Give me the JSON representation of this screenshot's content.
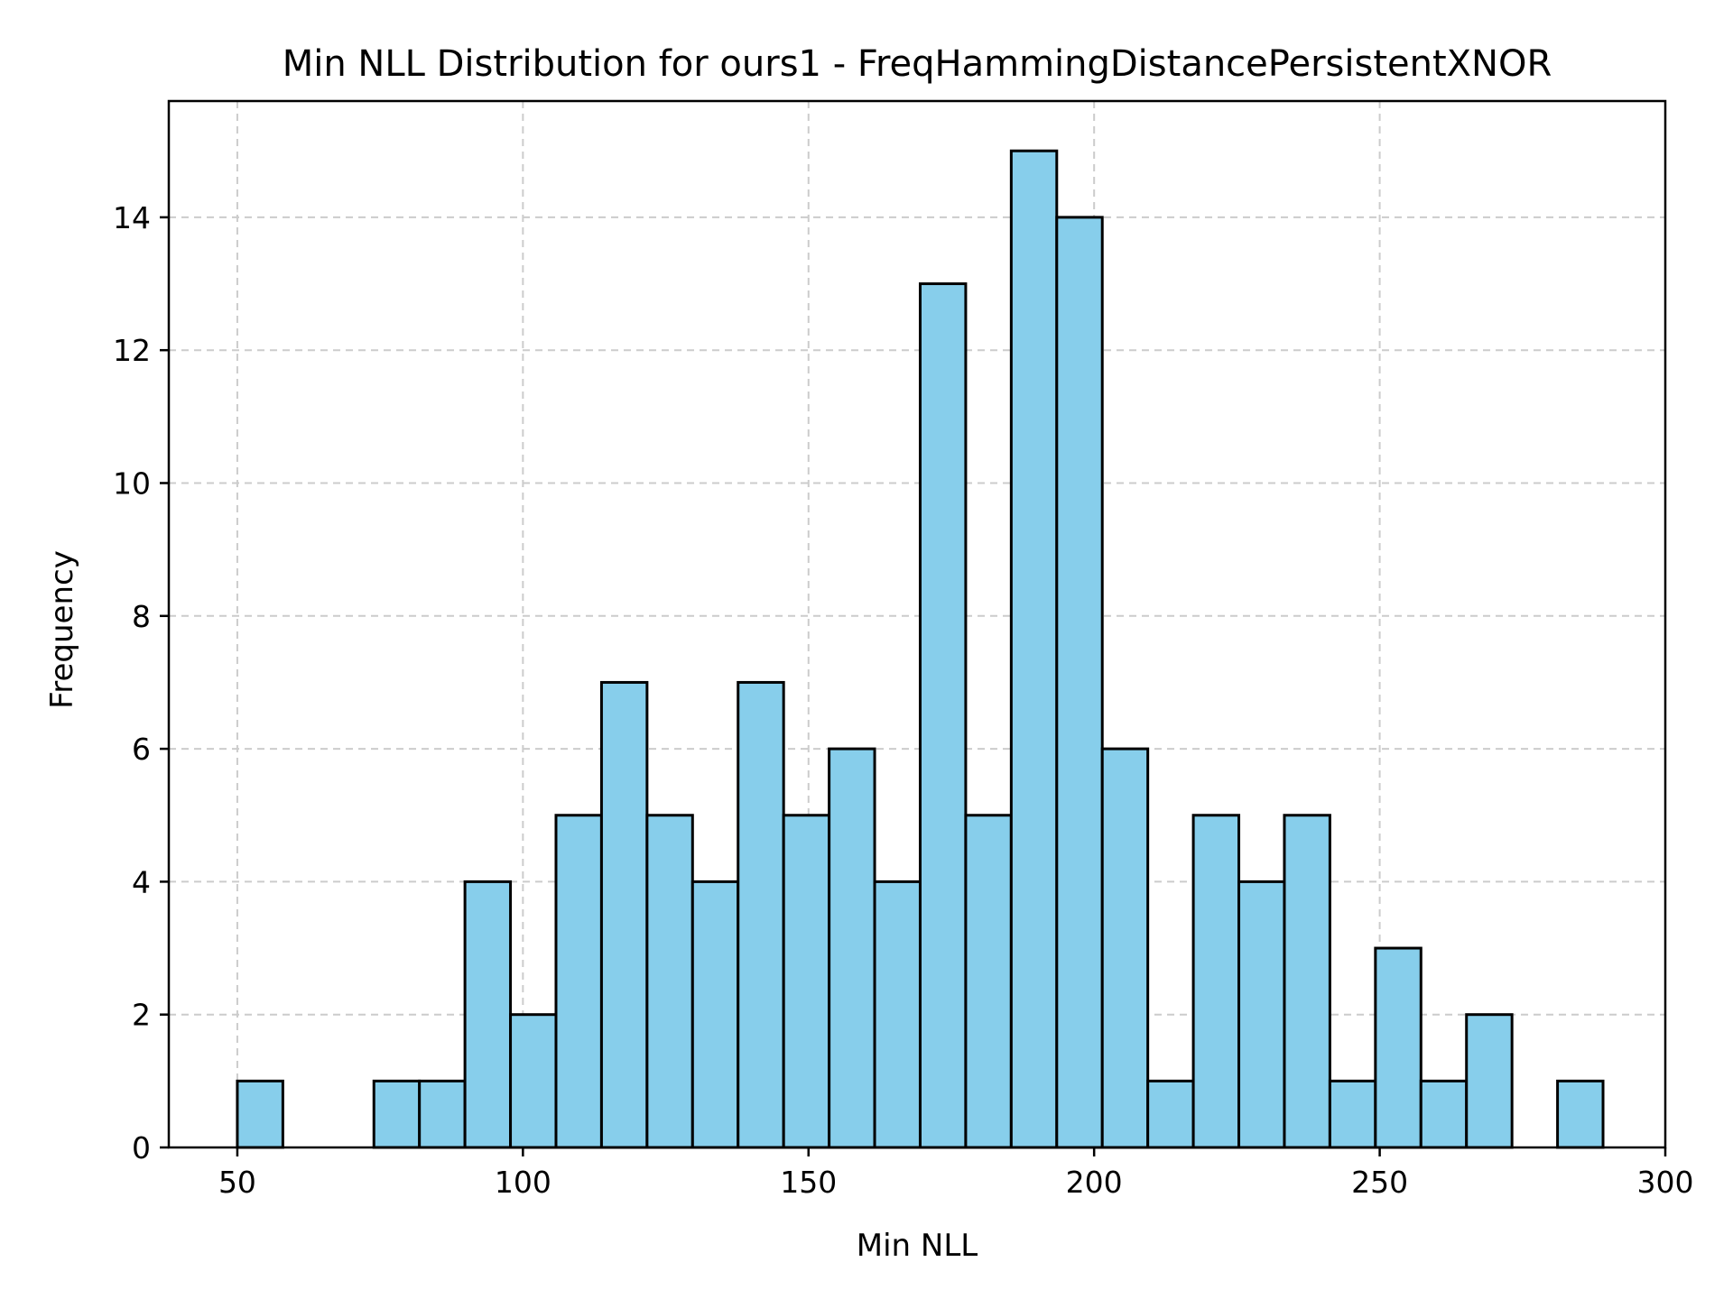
{
  "chart_data": {
    "type": "bar",
    "title": "Min NLL Distribution for ours1 - FreqHammingDistancePersistentXNOR",
    "xlabel": "Min NLL",
    "ylabel": "Frequency",
    "xlim": [
      38,
      300
    ],
    "ylim": [
      0,
      15.75
    ],
    "xticks": [
      50,
      100,
      150,
      200,
      250,
      300
    ],
    "yticks": [
      0,
      2,
      4,
      6,
      8,
      10,
      12,
      14
    ],
    "grid": true,
    "bar_color": "#87CEEB",
    "edge_color": "#000000",
    "bin_start": 50,
    "bin_width": 7.97,
    "counts": [
      1,
      0,
      0,
      1,
      1,
      4,
      2,
      5,
      7,
      5,
      4,
      7,
      5,
      6,
      4,
      13,
      5,
      15,
      14,
      6,
      1,
      5,
      4,
      5,
      1,
      3,
      1,
      2,
      0,
      1
    ]
  }
}
